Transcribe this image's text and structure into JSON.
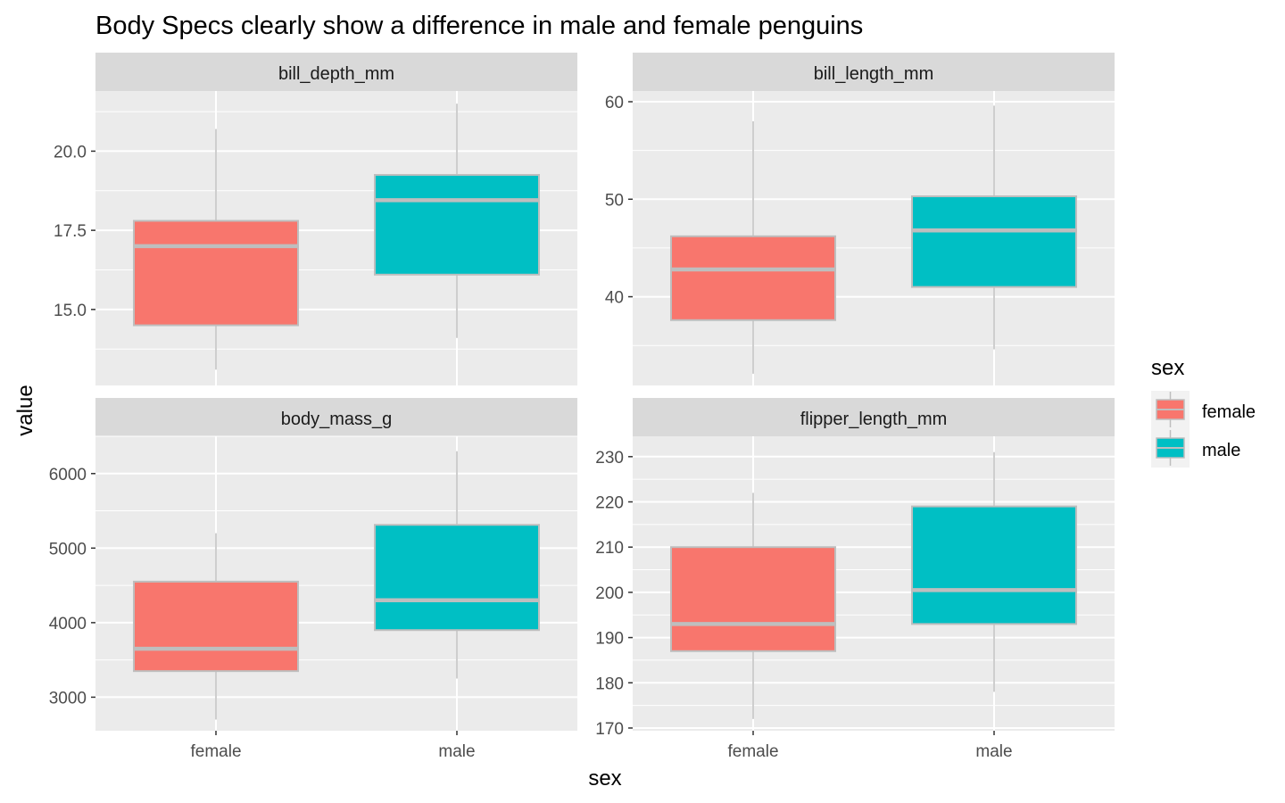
{
  "chart_data": {
    "type": "boxplot",
    "title": "Body Specs clearly show a difference in male and female penguins",
    "xlabel": "sex",
    "ylabel": "value",
    "categories": [
      "female",
      "male"
    ],
    "fill_colors": {
      "female": "#F8766D",
      "male": "#00BFC4"
    },
    "box_outline_color": "#BEBEBE",
    "panel_background": "#EBEBEB",
    "strip_background": "#D9D9D9",
    "grid": true,
    "legend": {
      "title": "sex",
      "position": "right",
      "entries": [
        "female",
        "male"
      ]
    },
    "panels": [
      {
        "strip": "bill_depth_mm",
        "ylim": [
          12.6,
          21.9
        ],
        "yticks": [
          15.0,
          17.5,
          20.0
        ],
        "ytick_labels": [
          "15.0",
          "17.5",
          "20.0"
        ],
        "boxes": [
          {
            "category": "female",
            "whisker_low": 13.1,
            "q1": 14.5,
            "median": 17.0,
            "q3": 17.8,
            "whisker_high": 20.7
          },
          {
            "category": "male",
            "whisker_low": 14.1,
            "q1": 16.1,
            "median": 18.45,
            "q3": 19.25,
            "whisker_high": 21.5
          }
        ]
      },
      {
        "strip": "bill_length_mm",
        "ylim": [
          30.9,
          61.1
        ],
        "yticks": [
          40,
          50,
          60
        ],
        "ytick_labels": [
          "40",
          "50",
          "60"
        ],
        "boxes": [
          {
            "category": "female",
            "whisker_low": 32.1,
            "q1": 37.6,
            "median": 42.8,
            "q3": 46.2,
            "whisker_high": 58.0
          },
          {
            "category": "male",
            "whisker_low": 34.6,
            "q1": 41.0,
            "median": 46.8,
            "q3": 50.3,
            "whisker_high": 59.6
          }
        ]
      },
      {
        "strip": "body_mass_g",
        "ylim": [
          2550,
          6500
        ],
        "yticks": [
          3000,
          4000,
          5000,
          6000
        ],
        "ytick_labels": [
          "3000",
          "4000",
          "5000",
          "6000"
        ],
        "boxes": [
          {
            "category": "female",
            "whisker_low": 2700,
            "q1": 3350,
            "median": 3650,
            "q3": 4550,
            "whisker_high": 5200
          },
          {
            "category": "male",
            "whisker_low": 3250,
            "q1": 3900,
            "median": 4300,
            "q3": 5312,
            "whisker_high": 6300
          }
        ]
      },
      {
        "strip": "flipper_length_mm",
        "ylim": [
          169.4,
          234.5
        ],
        "yticks": [
          170,
          180,
          190,
          200,
          210,
          220,
          230
        ],
        "ytick_labels": [
          "170",
          "180",
          "190",
          "200",
          "210",
          "220",
          "230"
        ],
        "boxes": [
          {
            "category": "female",
            "whisker_low": 172,
            "q1": 187,
            "median": 193,
            "q3": 210,
            "whisker_high": 222
          },
          {
            "category": "male",
            "whisker_low": 178,
            "q1": 193,
            "median": 200.5,
            "q3": 219,
            "whisker_high": 231
          }
        ]
      }
    ]
  }
}
